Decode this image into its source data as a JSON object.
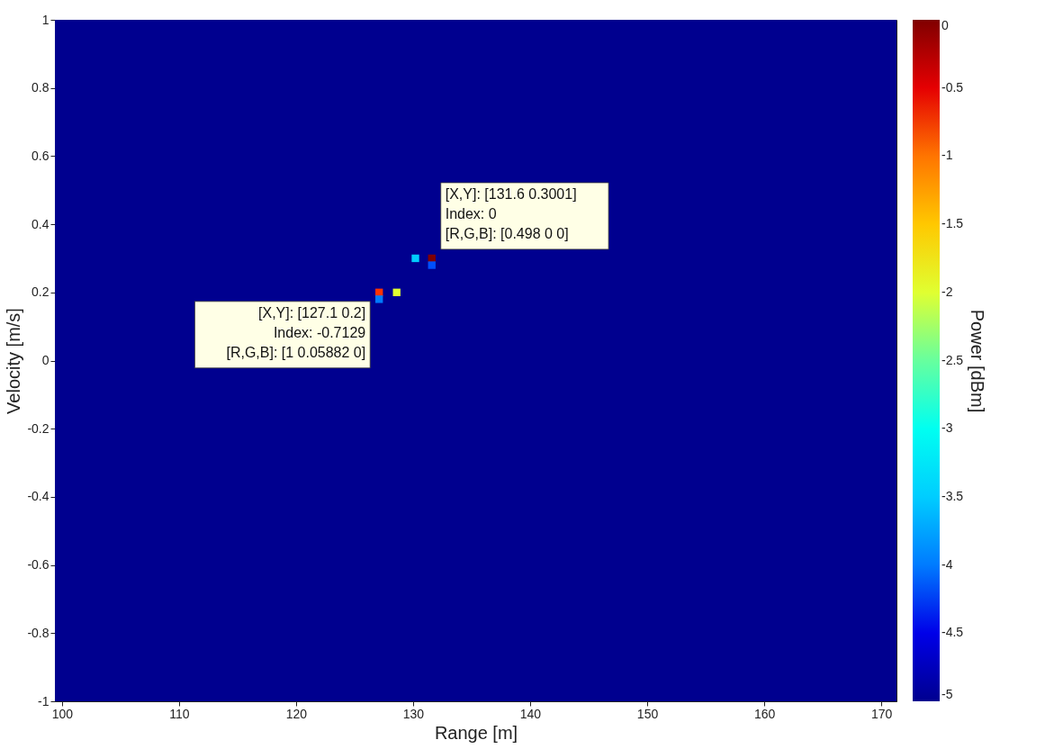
{
  "chart_data": {
    "type": "scatter",
    "xlabel": "Range [m]",
    "ylabel": "Velocity [m/s]",
    "clabel": "Power [dBm]",
    "x": [
      127.1,
      128.6,
      127.1,
      131.6,
      130.2,
      131.6
    ],
    "values": [
      0.2,
      0.2,
      0.18,
      0.3,
      0.3,
      0.28
    ],
    "cvalues": [
      -0.7129,
      -2,
      -4,
      0,
      -3.5,
      -4.2
    ],
    "marker": "square",
    "xlim": [
      99.4,
      171.3
    ],
    "ylim": [
      -1,
      1
    ],
    "xticks": [
      100,
      110,
      120,
      130,
      140,
      150,
      160,
      170
    ],
    "yticks": [
      -1,
      -0.8,
      -0.6,
      -0.4,
      -0.2,
      0,
      0.2,
      0.4,
      0.6,
      0.8,
      1
    ],
    "clim": [
      -5,
      0
    ],
    "cticks": [
      -5,
      -4.5,
      -4,
      -3.5,
      -3,
      -2.5,
      -2,
      -1.5,
      -1,
      -0.5,
      0
    ],
    "grid": false,
    "annotations": [
      {
        "text": "[X,Y]: [131.6 0.3001]\nIndex: 0\n[R,G,B]: [0.498 0 0]",
        "x": 131.6,
        "y": 0.3001
      },
      {
        "text": "[X,Y]: [127.1 0.2]\nIndex: -0.7129\n[R,G,B]: [1 0.05882 0]",
        "x": 127.1,
        "y": 0.2
      }
    ]
  }
}
